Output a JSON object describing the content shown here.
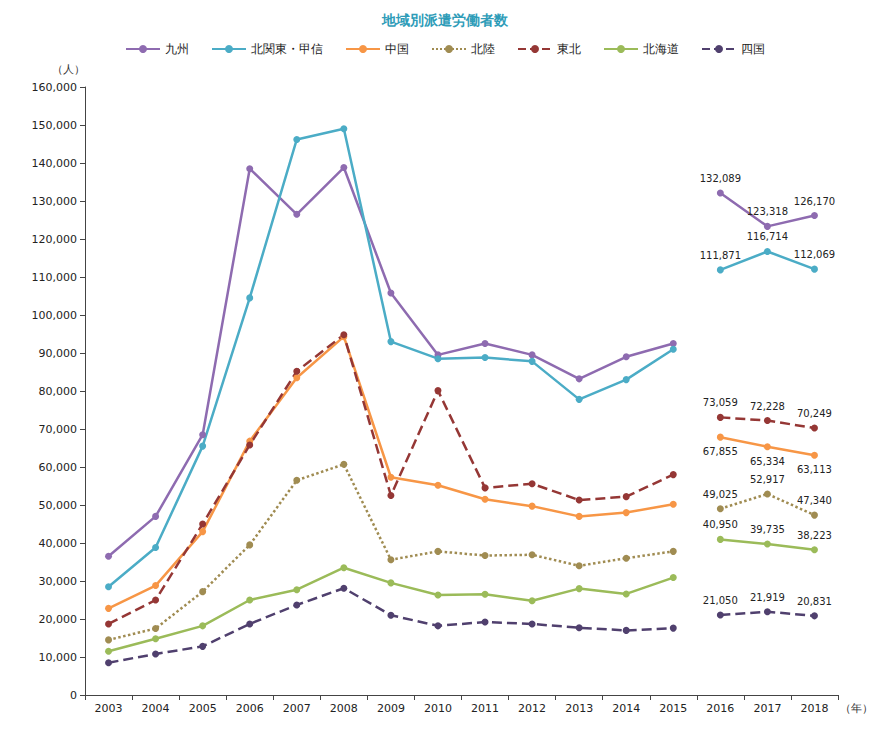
{
  "chart_data": {
    "type": "line",
    "title": "地域別派遣労働者数",
    "y_label": "（人）",
    "x_label": "（年）",
    "categories": [
      "2003",
      "2004",
      "2005",
      "2006",
      "2007",
      "2008",
      "2009",
      "2010",
      "2011",
      "2012",
      "2013",
      "2014",
      "2015",
      "2016",
      "2017",
      "2018"
    ],
    "ylim": [
      0,
      160000
    ],
    "yticks": [
      0,
      {
        "value": 10000,
        "label": "10,000"
      },
      {
        "value": 20000,
        "label": "20,000"
      },
      {
        "value": 30000,
        "label": "30,000"
      },
      {
        "value": 40000,
        "label": "40,000"
      },
      {
        "value": 50000,
        "label": "50,000"
      },
      {
        "value": 60000,
        "label": "60,000"
      },
      {
        "value": 70000,
        "label": "70,000"
      },
      {
        "value": 80000,
        "label": "80,000"
      },
      {
        "value": 90000,
        "label": "90,000"
      },
      {
        "value": 100000,
        "label": "100,000"
      },
      {
        "value": 110000,
        "label": "110,000"
      },
      {
        "value": 120000,
        "label": "120,000"
      },
      {
        "value": 130000,
        "label": "130,000"
      },
      {
        "value": 140000,
        "label": "140,000"
      },
      {
        "value": 150000,
        "label": "150,000"
      },
      {
        "value": 160000,
        "label": "160,000"
      }
    ],
    "grid": false,
    "legend": "top",
    "series": [
      {
        "name": "九州",
        "color": "#8e6bb0",
        "line_style": "solid",
        "marker": "circle",
        "values": [
          36500,
          47000,
          68500,
          138500,
          126500,
          138800,
          105800,
          89500,
          92500,
          89500,
          83200,
          89000,
          92500,
          null,
          null,
          null
        ]
      },
      {
        "name": "北関東・甲信",
        "color": "#4bacc6",
        "line_style": "solid",
        "marker": "circle",
        "values": [
          28500,
          38800,
          65500,
          104500,
          146200,
          149000,
          93000,
          88500,
          88800,
          87800,
          77800,
          83000,
          91000,
          null,
          null,
          null
        ]
      },
      {
        "name": "中国",
        "color": "#f79646",
        "line_style": "solid",
        "marker": "circle",
        "values": [
          22800,
          28800,
          43000,
          66800,
          83500,
          94300,
          57300,
          55200,
          51500,
          49700,
          47000,
          48000,
          50200,
          null,
          null,
          null
        ]
      },
      {
        "name": "北陸",
        "color": "#a08c52",
        "line_style": "dotted",
        "marker": "circle",
        "values": [
          14500,
          17500,
          27200,
          39500,
          56500,
          60700,
          35600,
          37800,
          36700,
          36900,
          34000,
          36000,
          37800,
          null,
          null,
          null
        ]
      },
      {
        "name": "東北",
        "color": "#953735",
        "line_style": "dashed",
        "marker": "circle",
        "values": [
          18700,
          25000,
          45000,
          65800,
          85200,
          94800,
          52500,
          80100,
          54500,
          55600,
          51300,
          52200,
          58000,
          null,
          null,
          null
        ]
      },
      {
        "name": "北海道",
        "color": "#9bbb59",
        "line_style": "solid",
        "marker": "circle",
        "values": [
          11500,
          14800,
          18200,
          25000,
          27700,
          33500,
          29500,
          26300,
          26500,
          24800,
          28000,
          26600,
          30900,
          null,
          null,
          null
        ]
      },
      {
        "name": "四国",
        "color": "#50406e",
        "line_style": "dashed",
        "marker": "circle",
        "values": [
          8500,
          10800,
          12800,
          18700,
          23700,
          28100,
          21000,
          18200,
          19200,
          18700,
          17700,
          17000,
          17600,
          null,
          null,
          null
        ]
      },
      {
        "name": "九州",
        "color": "#8e6bb0",
        "line_style": "solid",
        "marker": "circle",
        "data_labels": true,
        "values": [
          null,
          null,
          null,
          null,
          null,
          null,
          null,
          null,
          null,
          null,
          null,
          null,
          null,
          132089,
          123318,
          126170
        ],
        "value_labels": [
          null,
          null,
          null,
          null,
          null,
          null,
          null,
          null,
          null,
          null,
          null,
          null,
          null,
          "132,089",
          "123,318",
          "126,170"
        ]
      },
      {
        "name": "北関東・甲信",
        "color": "#4bacc6",
        "line_style": "solid",
        "marker": "circle",
        "data_labels": true,
        "values": [
          null,
          null,
          null,
          null,
          null,
          null,
          null,
          null,
          null,
          null,
          null,
          null,
          null,
          111871,
          116714,
          112069
        ],
        "value_labels": [
          null,
          null,
          null,
          null,
          null,
          null,
          null,
          null,
          null,
          null,
          null,
          null,
          null,
          "111,871",
          "116,714",
          "112,069"
        ]
      },
      {
        "name": "中国",
        "color": "#f79646",
        "line_style": "solid",
        "marker": "circle",
        "data_labels": true,
        "values": [
          null,
          null,
          null,
          null,
          null,
          null,
          null,
          null,
          null,
          null,
          null,
          null,
          null,
          67855,
          65334,
          63113
        ],
        "value_labels": [
          null,
          null,
          null,
          null,
          null,
          null,
          null,
          null,
          null,
          null,
          null,
          null,
          null,
          "67,855",
          "65,334",
          "63,113"
        ]
      },
      {
        "name": "北陸",
        "color": "#a08c52",
        "line_style": "dotted",
        "marker": "circle",
        "data_labels": true,
        "values": [
          null,
          null,
          null,
          null,
          null,
          null,
          null,
          null,
          null,
          null,
          null,
          null,
          null,
          49025,
          52917,
          47340
        ],
        "value_labels": [
          null,
          null,
          null,
          null,
          null,
          null,
          null,
          null,
          null,
          null,
          null,
          null,
          null,
          "49,025",
          "52,917",
          "47,340"
        ]
      },
      {
        "name": "東北",
        "color": "#953735",
        "line_style": "dashed",
        "marker": "circle",
        "data_labels": true,
        "values": [
          null,
          null,
          null,
          null,
          null,
          null,
          null,
          null,
          null,
          null,
          null,
          null,
          null,
          73059,
          72228,
          70249
        ],
        "value_labels": [
          null,
          null,
          null,
          null,
          null,
          null,
          null,
          null,
          null,
          null,
          null,
          null,
          null,
          "73,059",
          "72,228",
          "70,249"
        ]
      },
      {
        "name": "北海道",
        "color": "#9bbb59",
        "line_style": "solid",
        "marker": "circle",
        "data_labels": true,
        "values": [
          null,
          null,
          null,
          null,
          null,
          null,
          null,
          null,
          null,
          null,
          null,
          null,
          null,
          40950,
          39735,
          38223
        ],
        "value_labels": [
          null,
          null,
          null,
          null,
          null,
          null,
          null,
          null,
          null,
          null,
          null,
          null,
          null,
          "40,950",
          "39,735",
          "38,223"
        ]
      },
      {
        "name": "四国",
        "color": "#50406e",
        "line_style": "dashed",
        "marker": "circle",
        "data_labels": true,
        "values": [
          null,
          null,
          null,
          null,
          null,
          null,
          null,
          null,
          null,
          null,
          null,
          null,
          null,
          21050,
          21919,
          20831
        ],
        "value_labels": [
          null,
          null,
          null,
          null,
          null,
          null,
          null,
          null,
          null,
          null,
          null,
          null,
          null,
          "21,050",
          "21,919",
          "20,831"
        ]
      }
    ]
  }
}
